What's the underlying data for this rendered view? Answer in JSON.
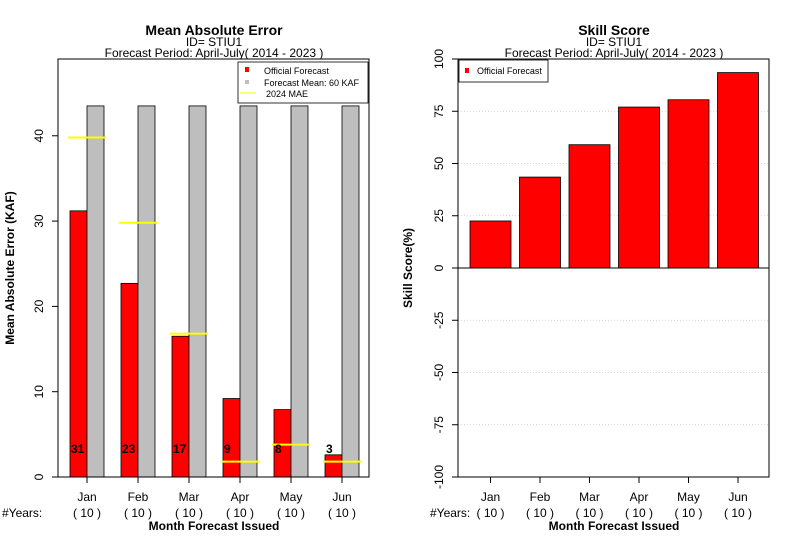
{
  "chart_data": [
    {
      "type": "bar",
      "title": "Mean Absolute Error",
      "subtitle_id": "ID= STIU1",
      "subtitle_period": "Forecast Period: April-July( 2014 - 2023 )",
      "ylabel": "Mean Absolute Error (KAF)",
      "xlabel": "Month Forecast Issued",
      "years_label": "#Years:",
      "categories": [
        "Jan",
        "Feb",
        "Mar",
        "Apr",
        "May",
        "Jun"
      ],
      "years": [
        "( 10 )",
        "( 10 )",
        "( 10 )",
        "( 10 )",
        "( 10 )",
        "( 10 )"
      ],
      "ylim": [
        0,
        49
      ],
      "yticks": [
        "0",
        "10",
        "20",
        "30",
        "40"
      ],
      "series": [
        {
          "name": "Official Forecast",
          "values": [
            31.2,
            22.7,
            16.5,
            9.2,
            7.9,
            2.6
          ],
          "color": "#ff0000"
        },
        {
          "name": "Forecast Mean: 60 KAF",
          "values": [
            43.5,
            43.5,
            43.5,
            43.5,
            43.5,
            43.5
          ],
          "color": "#bebebe"
        }
      ],
      "mae_2024": {
        "name": "2024  MAE",
        "values": [
          39.8,
          29.8,
          16.8,
          1.8,
          3.8,
          1.8
        ],
        "color": "#ffff00"
      },
      "data_labels": [
        "31",
        "23",
        "17",
        "9",
        "8",
        "3"
      ],
      "legend_position": "top-right"
    },
    {
      "type": "bar",
      "title": "Skill Score",
      "subtitle_id": "ID= STIU1",
      "subtitle_period": "Forecast Period: April-July( 2014 - 2023 )",
      "ylabel": "Skill Score(%)",
      "xlabel": "Month Forecast Issued",
      "years_label": "#Years:",
      "categories": [
        "Jan",
        "Feb",
        "Mar",
        "Apr",
        "May",
        "Jun"
      ],
      "years": [
        "( 10 )",
        "( 10 )",
        "( 10 )",
        "( 10 )",
        "( 10 )",
        "( 10 )"
      ],
      "ylim": [
        -100,
        100
      ],
      "yticks": [
        "-100",
        "-75",
        "-50",
        "-25",
        "0",
        "25",
        "50",
        "75",
        "100"
      ],
      "series": [
        {
          "name": "Official Forecast",
          "values": [
            22.5,
            43.5,
            59,
            77,
            80.5,
            93.5
          ],
          "color": "#ff0000"
        }
      ],
      "grid": true,
      "legend_position": "top-left"
    }
  ]
}
